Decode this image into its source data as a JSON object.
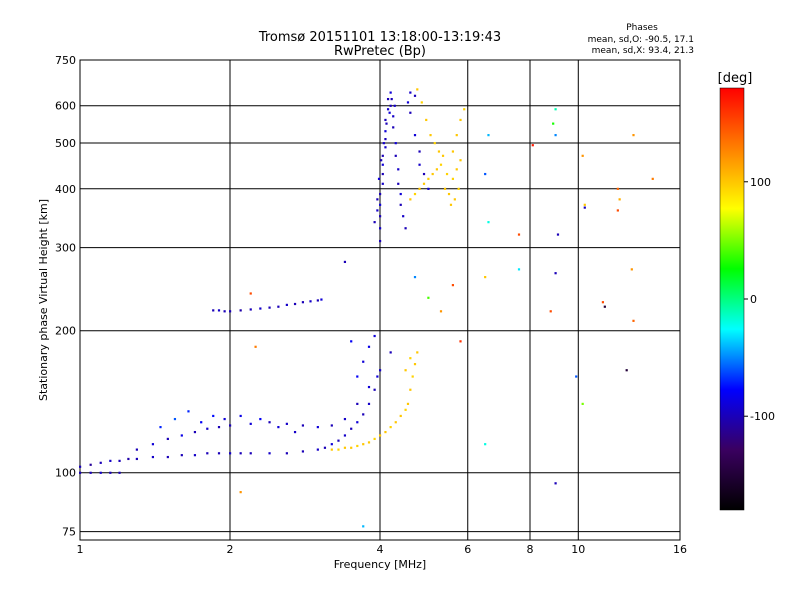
{
  "chart_data": {
    "type": "scatter",
    "title": "Tromsø 20151101 13:18:00-13:19:43",
    "subtitle": "RwPretec (Bp)",
    "xlabel": "Frequency [MHz]",
    "ylabel": "Stationary phase Virtual Height [km]",
    "x_scale": "log2",
    "y_scale": "log",
    "xlim": [
      1,
      16
    ],
    "ylim": [
      72,
      750
    ],
    "x_ticks": [
      1,
      2,
      4,
      6,
      8,
      10,
      16
    ],
    "y_ticks": [
      75,
      100,
      200,
      300,
      400,
      500,
      600,
      750
    ],
    "grid": true,
    "phase_stats": {
      "heading": "Phases",
      "line_o": "mean, sd,O: -90.5, 17.1",
      "line_x": "mean, sd,X:  93.4, 21.3"
    },
    "colorbar": {
      "label": "[deg]",
      "range": [
        -180,
        180
      ],
      "ticks": [
        100,
        0,
        -100
      ],
      "colors": [
        "#000000",
        "#3a0060",
        "#0000ff",
        "#00ffff",
        "#00ff00",
        "#ffff00",
        "#ff8000",
        "#ff0000"
      ]
    },
    "series": [
      {
        "points": [
          [
            1.0,
            103,
            -100
          ],
          [
            1.05,
            104,
            -110
          ],
          [
            1.1,
            105,
            -100
          ],
          [
            1.15,
            106,
            -95
          ],
          [
            1.2,
            106,
            -100
          ],
          [
            1.25,
            107,
            -105
          ],
          [
            1.3,
            107,
            -100
          ],
          [
            1.4,
            108,
            -95
          ],
          [
            1.5,
            108,
            -100
          ],
          [
            1.6,
            109,
            -100
          ],
          [
            1.7,
            109,
            -95
          ],
          [
            1.8,
            110,
            -100
          ],
          [
            1.9,
            110,
            -100
          ],
          [
            2.0,
            110,
            -95
          ],
          [
            2.1,
            110,
            -100
          ],
          [
            2.2,
            110,
            -100
          ],
          [
            2.4,
            110,
            -95
          ],
          [
            2.6,
            110,
            -100
          ],
          [
            2.8,
            111,
            -100
          ],
          [
            3.0,
            112,
            -95
          ],
          [
            3.1,
            113,
            -100
          ],
          [
            3.2,
            115,
            -90
          ],
          [
            3.3,
            117,
            -100
          ],
          [
            3.4,
            120,
            -95
          ],
          [
            3.5,
            124,
            -100
          ],
          [
            3.6,
            128,
            -90
          ],
          [
            3.7,
            133,
            -100
          ],
          [
            3.8,
            140,
            -95
          ],
          [
            3.9,
            150,
            -100
          ],
          [
            3.95,
            160,
            -90
          ],
          [
            1.0,
            100,
            -100
          ],
          [
            1.05,
            100,
            -100
          ],
          [
            1.1,
            100,
            -95
          ],
          [
            1.15,
            100,
            -100
          ],
          [
            1.2,
            100,
            -100
          ],
          [
            1.3,
            112,
            -100
          ],
          [
            1.4,
            115,
            -90
          ],
          [
            1.5,
            118,
            -100
          ],
          [
            1.6,
            120,
            -85
          ],
          [
            1.7,
            122,
            -100
          ],
          [
            1.8,
            124,
            -95
          ],
          [
            1.9,
            125,
            -100
          ],
          [
            2.0,
            126,
            -100
          ],
          [
            2.2,
            127,
            -90
          ],
          [
            2.4,
            128,
            -100
          ],
          [
            2.6,
            127,
            -95
          ],
          [
            2.8,
            126,
            -100
          ],
          [
            3.0,
            125,
            -90
          ],
          [
            3.2,
            126,
            -100
          ],
          [
            3.4,
            130,
            -95
          ],
          [
            3.6,
            140,
            -100
          ],
          [
            3.8,
            152,
            -90
          ],
          [
            4.0,
            165,
            -95
          ],
          [
            4.2,
            180,
            -100
          ],
          [
            1.45,
            125,
            -70
          ],
          [
            1.55,
            130,
            -60
          ],
          [
            1.65,
            135,
            -70
          ],
          [
            1.75,
            128,
            -80
          ],
          [
            1.85,
            132,
            -75
          ],
          [
            1.95,
            130,
            -90
          ],
          [
            2.1,
            132,
            -85
          ],
          [
            2.3,
            130,
            -80
          ],
          [
            2.5,
            125,
            -90
          ],
          [
            2.7,
            122,
            -95
          ],
          [
            3.6,
            160,
            -80
          ],
          [
            3.7,
            172,
            -90
          ],
          [
            3.8,
            185,
            -85
          ],
          [
            3.9,
            195,
            -90
          ],
          [
            1.85,
            221,
            -100
          ],
          [
            1.9,
            221,
            -95
          ],
          [
            1.95,
            220,
            -100
          ],
          [
            2.0,
            220,
            -100
          ],
          [
            2.1,
            221,
            -105
          ],
          [
            2.2,
            222,
            -100
          ],
          [
            2.3,
            223,
            -95
          ],
          [
            2.4,
            224,
            -100
          ],
          [
            2.5,
            225,
            -100
          ],
          [
            2.6,
            227,
            -95
          ],
          [
            2.7,
            228,
            -100
          ],
          [
            2.8,
            230,
            -100
          ],
          [
            2.9,
            231,
            -95
          ],
          [
            3.0,
            232,
            -100
          ],
          [
            3.05,
            233,
            -90
          ],
          [
            4.0,
            310,
            -100
          ],
          [
            4.0,
            330,
            -95
          ],
          [
            4.0,
            350,
            -100
          ],
          [
            4.0,
            370,
            -90
          ],
          [
            4.0,
            390,
            -100
          ],
          [
            4.05,
            410,
            -95
          ],
          [
            4.05,
            430,
            -100
          ],
          [
            4.05,
            450,
            -90
          ],
          [
            4.05,
            470,
            -100
          ],
          [
            4.1,
            490,
            -95
          ],
          [
            4.1,
            510,
            -100
          ],
          [
            4.1,
            530,
            -90
          ],
          [
            4.1,
            560,
            -100
          ],
          [
            4.15,
            590,
            -95
          ],
          [
            4.15,
            620,
            -100
          ],
          [
            4.2,
            640,
            -90
          ],
          [
            4.2,
            600,
            -100
          ],
          [
            4.25,
            570,
            -95
          ],
          [
            4.25,
            540,
            -100
          ],
          [
            4.3,
            500,
            -90
          ],
          [
            4.3,
            470,
            -100
          ],
          [
            4.35,
            440,
            -95
          ],
          [
            4.35,
            410,
            -100
          ],
          [
            4.4,
            390,
            -90
          ],
          [
            4.4,
            370,
            -100
          ],
          [
            4.45,
            350,
            -95
          ],
          [
            4.5,
            330,
            -100
          ],
          [
            4.55,
            610,
            -90
          ],
          [
            4.6,
            580,
            -100
          ],
          [
            4.6,
            640,
            -95
          ],
          [
            4.7,
            630,
            -100
          ],
          [
            4.7,
            520,
            -90
          ],
          [
            4.8,
            480,
            -100
          ],
          [
            4.8,
            450,
            -95
          ],
          [
            4.9,
            430,
            -100
          ],
          [
            5.0,
            400,
            -90
          ],
          [
            3.9,
            340,
            -100
          ],
          [
            3.95,
            360,
            -95
          ],
          [
            3.95,
            380,
            -100
          ],
          [
            3.98,
            420,
            -90
          ],
          [
            4.02,
            460,
            -100
          ],
          [
            4.07,
            500,
            -95
          ],
          [
            4.12,
            550,
            -100
          ],
          [
            4.18,
            580,
            -90
          ],
          [
            4.22,
            620,
            -100
          ],
          [
            4.28,
            600,
            -95
          ],
          [
            3.2,
            112,
            100
          ],
          [
            3.3,
            112,
            95
          ],
          [
            3.4,
            113,
            100
          ],
          [
            3.5,
            113,
            100
          ],
          [
            3.6,
            114,
            95
          ],
          [
            3.7,
            115,
            100
          ],
          [
            3.8,
            116,
            100
          ],
          [
            3.9,
            118,
            95
          ],
          [
            4.0,
            120,
            100
          ],
          [
            4.1,
            122,
            100
          ],
          [
            4.2,
            125,
            95
          ],
          [
            4.3,
            128,
            100
          ],
          [
            4.4,
            132,
            100
          ],
          [
            4.5,
            136,
            95
          ],
          [
            4.55,
            140,
            100
          ],
          [
            4.6,
            150,
            100
          ],
          [
            4.65,
            160,
            95
          ],
          [
            4.7,
            170,
            100
          ],
          [
            4.75,
            180,
            100
          ],
          [
            4.6,
            175,
            95
          ],
          [
            4.5,
            165,
            100
          ],
          [
            4.6,
            380,
            100
          ],
          [
            4.7,
            390,
            95
          ],
          [
            4.8,
            400,
            100
          ],
          [
            4.9,
            410,
            100
          ],
          [
            5.0,
            420,
            95
          ],
          [
            5.1,
            430,
            100
          ],
          [
            5.2,
            440,
            100
          ],
          [
            5.3,
            450,
            95
          ],
          [
            5.4,
            400,
            100
          ],
          [
            5.5,
            390,
            100
          ],
          [
            5.6,
            420,
            95
          ],
          [
            5.7,
            440,
            100
          ],
          [
            5.8,
            460,
            100
          ],
          [
            5.75,
            400,
            95
          ],
          [
            5.65,
            380,
            100
          ],
          [
            5.55,
            370,
            100
          ],
          [
            5.45,
            430,
            95
          ],
          [
            5.35,
            470,
            100
          ],
          [
            5.25,
            480,
            100
          ],
          [
            5.15,
            500,
            95
          ],
          [
            5.05,
            520,
            100
          ],
          [
            4.95,
            560,
            100
          ],
          [
            4.85,
            610,
            95
          ],
          [
            4.75,
            650,
            100
          ],
          [
            5.8,
            560,
            100
          ],
          [
            5.9,
            590,
            95
          ],
          [
            5.7,
            520,
            100
          ],
          [
            5.6,
            480,
            100
          ],
          [
            4.7,
            260,
            -50
          ],
          [
            5.0,
            235,
            40
          ],
          [
            5.3,
            220,
            120
          ],
          [
            5.6,
            250,
            150
          ],
          [
            5.8,
            190,
            160
          ],
          [
            6.6,
            520,
            -40
          ],
          [
            6.5,
            430,
            -60
          ],
          [
            6.6,
            340,
            -20
          ],
          [
            6.5,
            260,
            100
          ],
          [
            7.6,
            270,
            -30
          ],
          [
            7.6,
            320,
            150
          ],
          [
            8.1,
            495,
            170
          ],
          [
            8.8,
            220,
            150
          ],
          [
            9.0,
            520,
            -50
          ],
          [
            9.0,
            590,
            -10
          ],
          [
            8.9,
            550,
            30
          ],
          [
            9.0,
            265,
            -100
          ],
          [
            9.0,
            95,
            -100
          ],
          [
            9.1,
            320,
            -100
          ],
          [
            9.9,
            160,
            -60
          ],
          [
            10.2,
            470,
            120
          ],
          [
            10.3,
            370,
            100
          ],
          [
            10.2,
            140,
            50
          ],
          [
            10.3,
            365,
            -100
          ],
          [
            12.0,
            400,
            140
          ],
          [
            12.1,
            380,
            110
          ],
          [
            12.0,
            360,
            150
          ],
          [
            12.8,
            270,
            120
          ],
          [
            12.9,
            210,
            140
          ],
          [
            12.9,
            520,
            120
          ],
          [
            14.1,
            420,
            130
          ],
          [
            11.2,
            230,
            150
          ],
          [
            11.3,
            225,
            -150
          ],
          [
            12.5,
            165,
            -150
          ],
          [
            6.5,
            115,
            -20
          ],
          [
            3.7,
            77,
            -40
          ],
          [
            2.2,
            240,
            150
          ],
          [
            2.25,
            185,
            130
          ],
          [
            2.1,
            91,
            120
          ],
          [
            3.4,
            280,
            -100
          ],
          [
            3.5,
            190,
            -80
          ]
        ]
      }
    ]
  }
}
